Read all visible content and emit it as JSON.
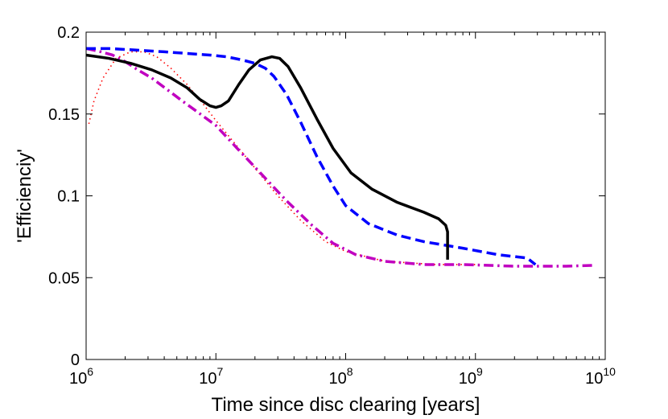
{
  "chart_data": {
    "type": "line",
    "title": "",
    "xlabel": "Time since disc clearing [years]",
    "ylabel": "'Efficienciy'",
    "xscale": "log",
    "xlim": [
      1000000,
      10000000000
    ],
    "ylim": [
      0,
      0.2
    ],
    "grid": false,
    "legend": "none",
    "x_ticks": [
      {
        "base": "10",
        "exp": "6",
        "value": 1000000
      },
      {
        "base": "10",
        "exp": "7",
        "value": 10000000
      },
      {
        "base": "10",
        "exp": "8",
        "value": 100000000
      },
      {
        "base": "10",
        "exp": "9",
        "value": 1000000000
      },
      {
        "base": "10",
        "exp": "10",
        "value": 10000000000
      }
    ],
    "y_ticks": [
      {
        "label": "0",
        "value": 0
      },
      {
        "label": "0.05",
        "value": 0.05
      },
      {
        "label": "0.1",
        "value": 0.1
      },
      {
        "label": "0.15",
        "value": 0.15
      },
      {
        "label": "0.2",
        "value": 0.2
      }
    ],
    "series": [
      {
        "name": "red-dotted",
        "color": "#ff0000",
        "style": "dotted",
        "x": [
          1050000,
          1150000,
          1350000,
          1700000,
          2200000,
          2800000,
          3500000,
          4500000,
          6000000,
          8000000,
          10000000,
          14000000,
          20000000,
          30000000,
          45000000,
          70000000,
          100000000,
          200000000,
          500000000,
          1000000000
        ],
        "y": [
          0.144,
          0.158,
          0.172,
          0.184,
          0.188,
          0.188,
          0.185,
          0.178,
          0.168,
          0.156,
          0.146,
          0.132,
          0.117,
          0.1,
          0.085,
          0.072,
          0.066,
          0.06,
          0.058,
          0.058
        ]
      },
      {
        "name": "magenta-dashdot",
        "color": "#c000c0",
        "style": "dashdot",
        "x": [
          1000000,
          1300000,
          1600000,
          2000000,
          2500000,
          3200000,
          4200000,
          5500000,
          7000000,
          10000000,
          15000000,
          22000000,
          35000000,
          55000000,
          80000000,
          120000000,
          200000000,
          400000000,
          800000000,
          2000000000,
          5000000000,
          8000000000
        ],
        "y": [
          0.19,
          0.188,
          0.186,
          0.182,
          0.177,
          0.172,
          0.165,
          0.158,
          0.152,
          0.143,
          0.128,
          0.114,
          0.097,
          0.082,
          0.071,
          0.064,
          0.06,
          0.058,
          0.058,
          0.057,
          0.057,
          0.0575
        ]
      },
      {
        "name": "blue-dashed",
        "color": "#0000ff",
        "style": "dashed",
        "x": [
          1000000,
          1500000,
          2500000,
          4000000,
          6000000,
          9000000,
          12000000,
          16000000,
          20000000,
          24000000,
          28000000,
          35000000,
          45000000,
          60000000,
          80000000,
          100000000,
          150000000,
          250000000,
          400000000,
          800000000,
          1500000000,
          2500000000,
          2900000000
        ],
        "y": [
          0.19,
          0.19,
          0.189,
          0.188,
          0.187,
          0.186,
          0.185,
          0.183,
          0.181,
          0.178,
          0.173,
          0.162,
          0.145,
          0.124,
          0.106,
          0.094,
          0.083,
          0.076,
          0.072,
          0.068,
          0.064,
          0.062,
          0.058
        ]
      },
      {
        "name": "black-solid",
        "color": "#000000",
        "style": "solid",
        "x": [
          1000000,
          1500000,
          2200000,
          3200000,
          4500000,
          6000000,
          7500000,
          9000000,
          10000000,
          11000000,
          12500000,
          15000000,
          18000000,
          22000000,
          27000000,
          31000000,
          36000000,
          45000000,
          60000000,
          80000000,
          110000000,
          160000000,
          250000000,
          400000000,
          520000000,
          590000000,
          610000000,
          610000000
        ],
        "y": [
          0.186,
          0.184,
          0.181,
          0.177,
          0.172,
          0.166,
          0.159,
          0.155,
          0.154,
          0.155,
          0.158,
          0.168,
          0.177,
          0.183,
          0.185,
          0.184,
          0.179,
          0.166,
          0.147,
          0.129,
          0.114,
          0.104,
          0.096,
          0.09,
          0.086,
          0.082,
          0.078,
          0.061
        ]
      }
    ]
  }
}
